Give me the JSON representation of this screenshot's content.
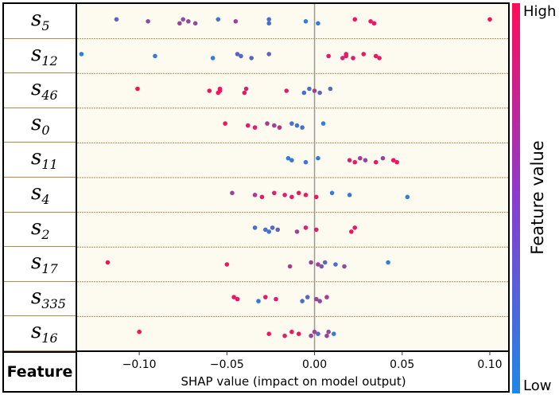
{
  "features": [
    "5",
    "12",
    "46",
    "0",
    "11",
    "4",
    "2",
    "17",
    "335",
    "16"
  ],
  "feature_prefix": "s",
  "feature_header": "Feature",
  "chart_data": {
    "type": "scatter",
    "subtype": "shap_beeswarm",
    "xlabel": "SHAP value (impact on model output)",
    "xlim": [
      -0.135,
      0.11
    ],
    "xticks": [
      -0.1,
      -0.05,
      0.0,
      0.05,
      0.1
    ],
    "xtick_labels": [
      "−0.10",
      "−0.05",
      "0.00",
      "0.05",
      "0.10"
    ],
    "zero_line": true,
    "colorbar": {
      "high_label": "High",
      "low_label": "Low",
      "title": "Feature value",
      "low_color": "#1e88e5",
      "high_color": "#ff0d57"
    },
    "points": [
      [
        {
          "x": -0.113,
          "v": 0.3
        },
        {
          "x": -0.095,
          "v": 0.45
        },
        {
          "x": -0.077,
          "v": 0.55
        },
        {
          "x": -0.075,
          "v": 0.45
        },
        {
          "x": -0.072,
          "v": 0.5
        },
        {
          "x": -0.068,
          "v": 0.5
        },
        {
          "x": -0.055,
          "v": 0.15
        },
        {
          "x": -0.045,
          "v": 0.55
        },
        {
          "x": -0.026,
          "v": 0.2
        },
        {
          "x": -0.026,
          "v": 0.2
        },
        {
          "x": -0.005,
          "v": 0.1
        },
        {
          "x": 0.002,
          "v": 0.1
        },
        {
          "x": 0.023,
          "v": 0.95
        },
        {
          "x": 0.032,
          "v": 0.9
        },
        {
          "x": 0.034,
          "v": 0.95
        },
        {
          "x": 0.1,
          "v": 1.0
        }
      ],
      [
        {
          "x": -0.133,
          "v": 0.05
        },
        {
          "x": -0.091,
          "v": 0.1
        },
        {
          "x": -0.058,
          "v": 0.1
        },
        {
          "x": -0.044,
          "v": 0.3
        },
        {
          "x": -0.042,
          "v": 0.25
        },
        {
          "x": -0.036,
          "v": 0.25
        },
        {
          "x": -0.026,
          "v": 0.3
        },
        {
          "x": 0.008,
          "v": 0.9
        },
        {
          "x": 0.016,
          "v": 0.8
        },
        {
          "x": 0.018,
          "v": 0.85
        },
        {
          "x": 0.018,
          "v": 0.9
        },
        {
          "x": 0.022,
          "v": 0.9
        },
        {
          "x": 0.028,
          "v": 0.95
        },
        {
          "x": 0.035,
          "v": 0.9
        },
        {
          "x": 0.037,
          "v": 0.85
        }
      ],
      [
        {
          "x": -0.101,
          "v": 1.0
        },
        {
          "x": -0.06,
          "v": 0.95
        },
        {
          "x": -0.055,
          "v": 0.9
        },
        {
          "x": -0.054,
          "v": 0.9
        },
        {
          "x": -0.054,
          "v": 0.95
        },
        {
          "x": -0.04,
          "v": 0.9
        },
        {
          "x": -0.039,
          "v": 0.85
        },
        {
          "x": -0.016,
          "v": 0.85
        },
        {
          "x": -0.006,
          "v": 0.2
        },
        {
          "x": -0.003,
          "v": 0.2
        },
        {
          "x": 0.0,
          "v": 0.6
        },
        {
          "x": 0.003,
          "v": 0.3
        },
        {
          "x": 0.009,
          "v": 0.25
        }
      ],
      [
        {
          "x": -0.051,
          "v": 0.95
        },
        {
          "x": -0.038,
          "v": 0.9
        },
        {
          "x": -0.034,
          "v": 0.85
        },
        {
          "x": -0.027,
          "v": 0.6
        },
        {
          "x": -0.023,
          "v": 0.55
        },
        {
          "x": -0.02,
          "v": 0.7
        },
        {
          "x": -0.013,
          "v": 0.2
        },
        {
          "x": -0.01,
          "v": 0.15
        },
        {
          "x": -0.007,
          "v": 0.2
        },
        {
          "x": 0.005,
          "v": 0.1
        }
      ],
      [
        {
          "x": -0.015,
          "v": 0.1
        },
        {
          "x": -0.013,
          "v": 0.15
        },
        {
          "x": -0.005,
          "v": 0.15
        },
        {
          "x": 0.002,
          "v": 0.1
        },
        {
          "x": 0.02,
          "v": 0.85
        },
        {
          "x": 0.023,
          "v": 0.9
        },
        {
          "x": 0.026,
          "v": 0.6
        },
        {
          "x": 0.029,
          "v": 0.55
        },
        {
          "x": 0.035,
          "v": 0.9
        },
        {
          "x": 0.039,
          "v": 0.55
        },
        {
          "x": 0.045,
          "v": 0.95
        },
        {
          "x": 0.047,
          "v": 0.95
        }
      ],
      [
        {
          "x": -0.047,
          "v": 0.55
        },
        {
          "x": -0.034,
          "v": 0.6
        },
        {
          "x": -0.03,
          "v": 0.95
        },
        {
          "x": -0.023,
          "v": 0.8
        },
        {
          "x": -0.017,
          "v": 0.85
        },
        {
          "x": -0.013,
          "v": 0.9
        },
        {
          "x": -0.009,
          "v": 0.95
        },
        {
          "x": -0.005,
          "v": 0.9
        },
        {
          "x": 0.001,
          "v": 0.95
        },
        {
          "x": 0.01,
          "v": 0.1
        },
        {
          "x": 0.02,
          "v": 0.15
        },
        {
          "x": 0.053,
          "v": 0.1
        }
      ],
      [
        {
          "x": -0.034,
          "v": 0.2
        },
        {
          "x": -0.028,
          "v": 0.2
        },
        {
          "x": -0.026,
          "v": 0.15
        },
        {
          "x": -0.024,
          "v": 0.25
        },
        {
          "x": -0.021,
          "v": 0.3
        },
        {
          "x": -0.01,
          "v": 0.55
        },
        {
          "x": -0.005,
          "v": 0.8
        },
        {
          "x": 0.001,
          "v": 0.85
        },
        {
          "x": 0.021,
          "v": 0.95
        },
        {
          "x": 0.023,
          "v": 0.9
        }
      ],
      [
        {
          "x": -0.118,
          "v": 1.0
        },
        {
          "x": -0.05,
          "v": 0.95
        },
        {
          "x": -0.014,
          "v": 0.6
        },
        {
          "x": -0.002,
          "v": 0.55
        },
        {
          "x": 0.002,
          "v": 0.6
        },
        {
          "x": 0.004,
          "v": 0.4
        },
        {
          "x": 0.006,
          "v": 0.3
        },
        {
          "x": 0.012,
          "v": 0.2
        },
        {
          "x": 0.017,
          "v": 0.5
        },
        {
          "x": 0.042,
          "v": 0.1
        }
      ],
      [
        {
          "x": -0.046,
          "v": 0.95
        },
        {
          "x": -0.044,
          "v": 0.9
        },
        {
          "x": -0.032,
          "v": 0.1
        },
        {
          "x": -0.028,
          "v": 0.9
        },
        {
          "x": -0.022,
          "v": 0.85
        },
        {
          "x": -0.007,
          "v": 0.2
        },
        {
          "x": -0.004,
          "v": 0.25
        },
        {
          "x": 0.001,
          "v": 0.55
        },
        {
          "x": 0.003,
          "v": 0.5
        },
        {
          "x": 0.007,
          "v": 0.6
        }
      ],
      [
        {
          "x": -0.1,
          "v": 1.0
        },
        {
          "x": -0.026,
          "v": 0.9
        },
        {
          "x": -0.017,
          "v": 0.85
        },
        {
          "x": -0.013,
          "v": 0.9
        },
        {
          "x": -0.009,
          "v": 0.95
        },
        {
          "x": -0.002,
          "v": 0.55
        },
        {
          "x": 0.0,
          "v": 0.6
        },
        {
          "x": 0.002,
          "v": 0.2
        },
        {
          "x": 0.007,
          "v": 0.55
        },
        {
          "x": 0.008,
          "v": 0.5
        },
        {
          "x": 0.011,
          "v": 0.1
        }
      ]
    ]
  }
}
